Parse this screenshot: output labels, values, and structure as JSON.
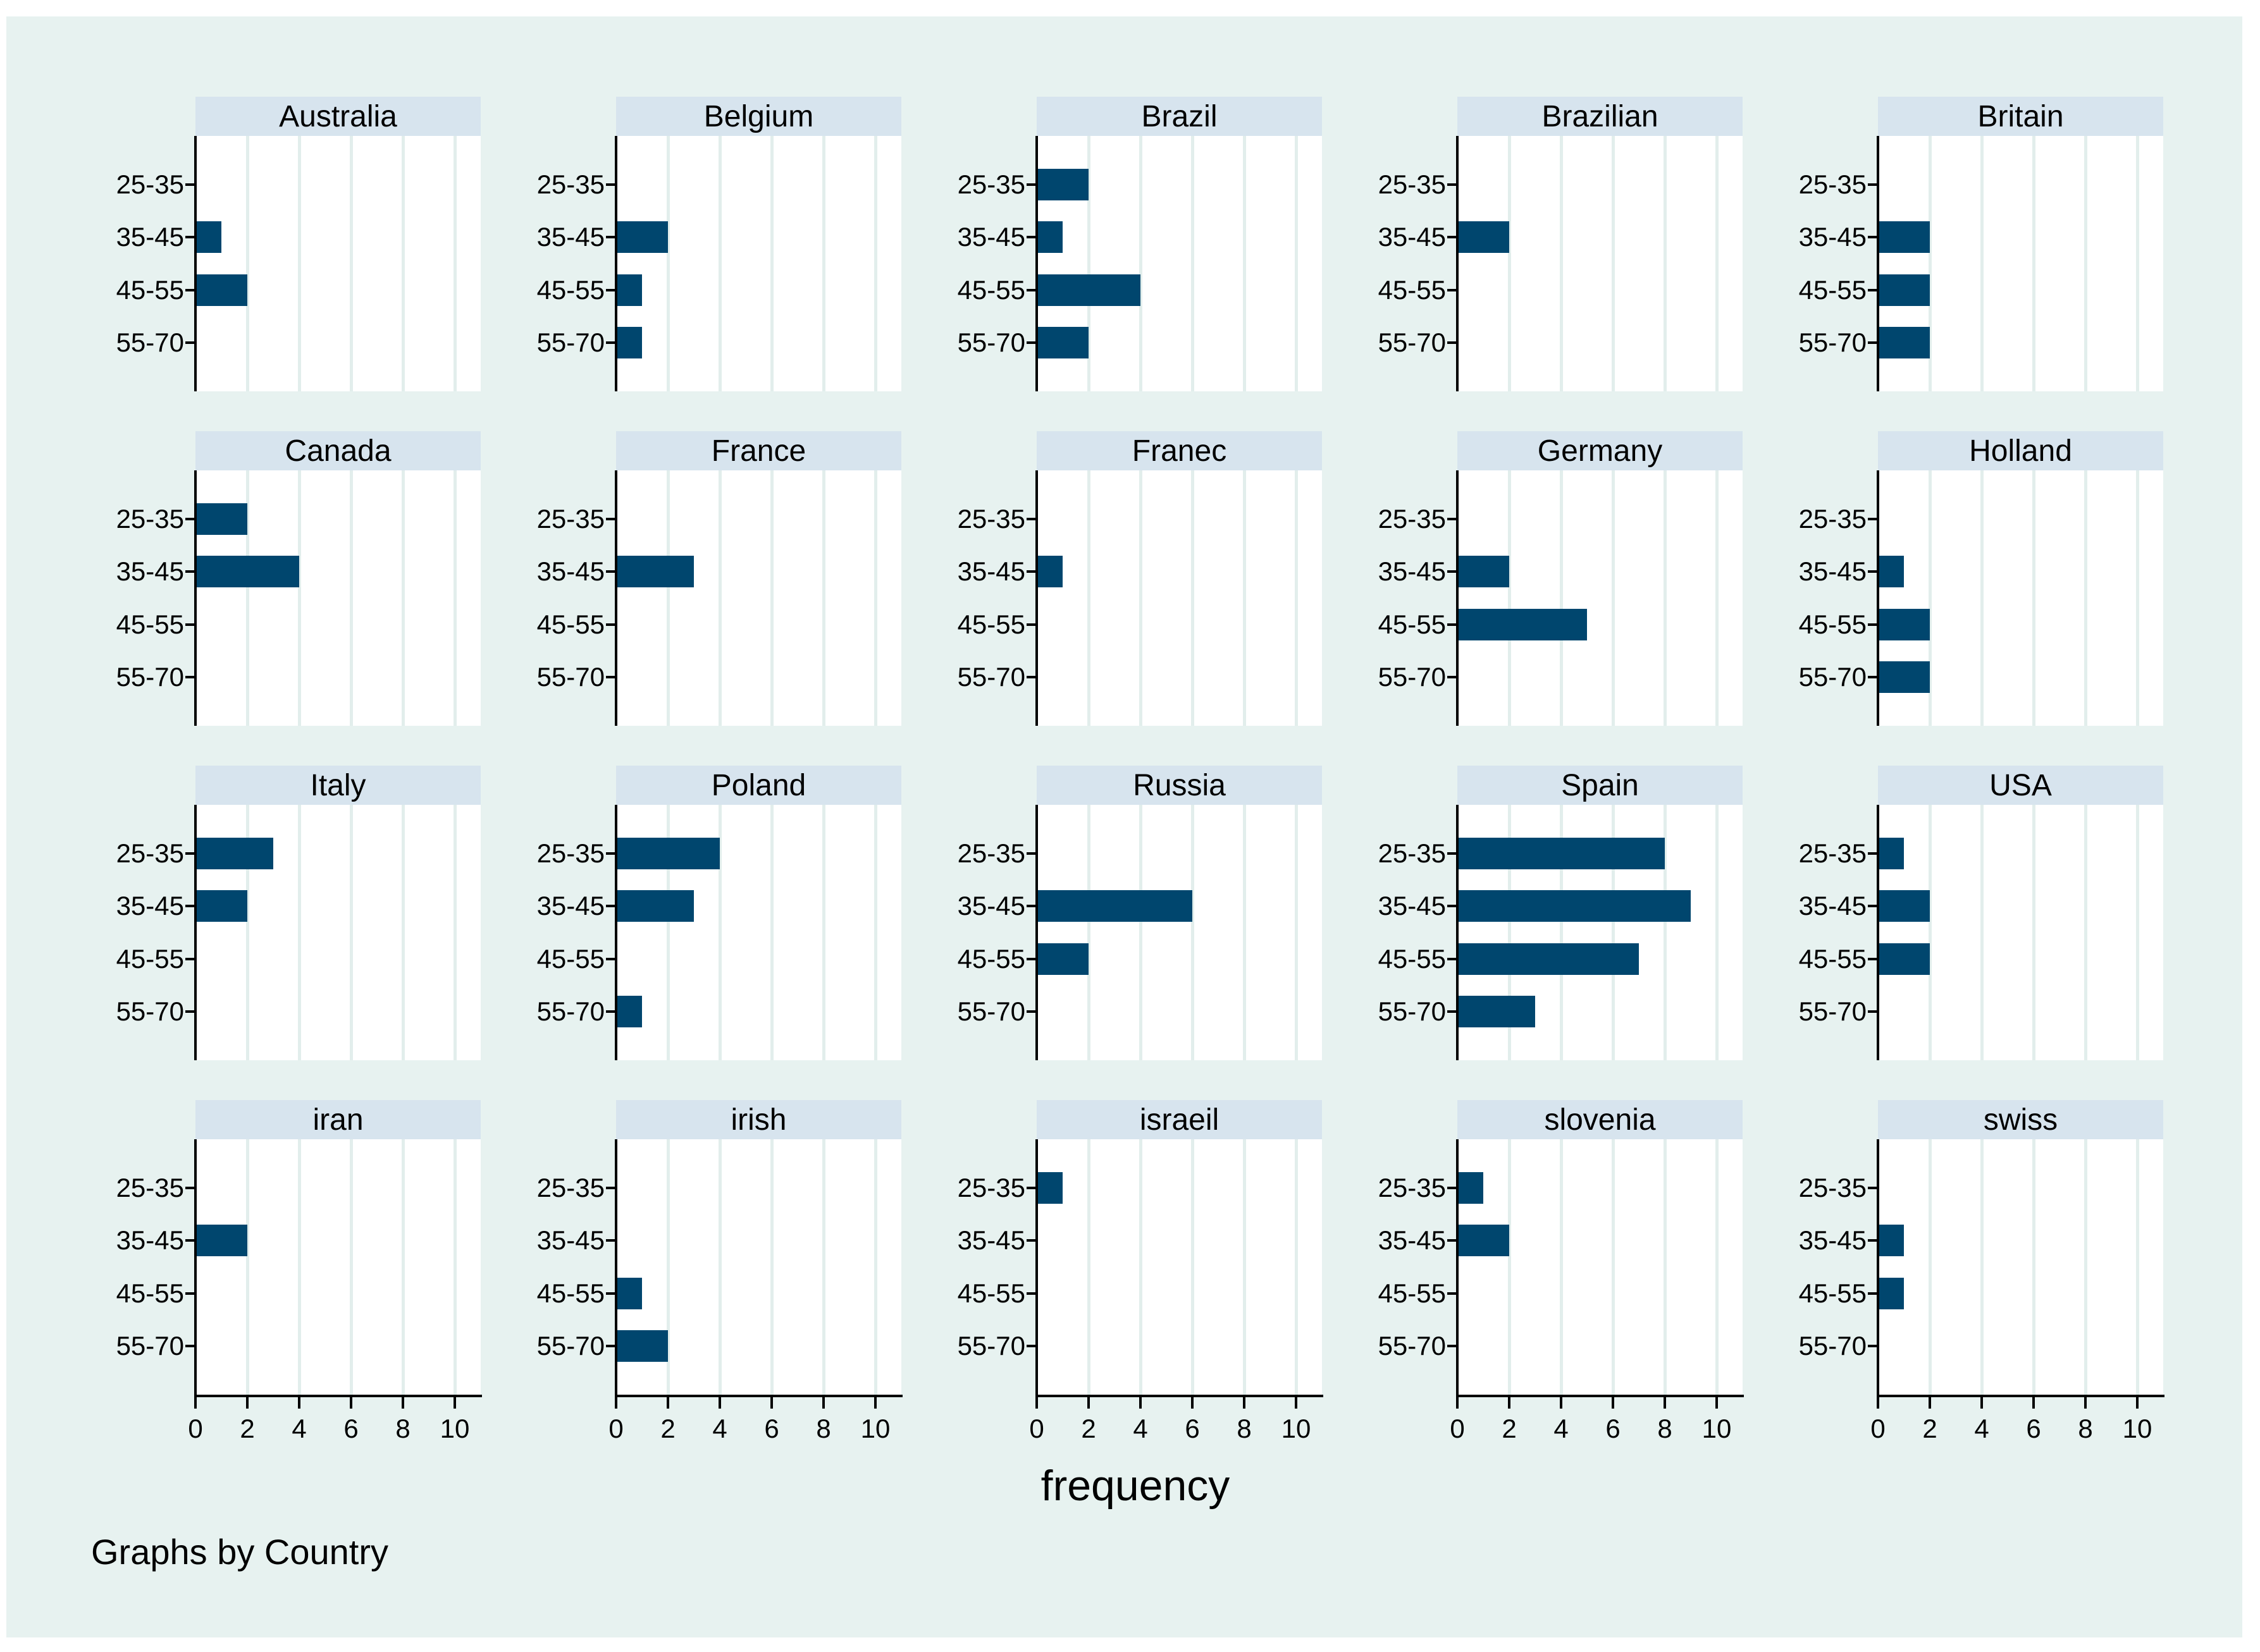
{
  "caption": "Graphs by Country",
  "colors": {
    "bar": "#00466e",
    "header_band": "#d7e4ee",
    "canvas_background": "#e7f2f0",
    "gridline": "#e2eeec",
    "plot_background": "#ffffff",
    "axis": "#000000"
  },
  "chart_data": {
    "type": "bar",
    "orientation": "horizontal",
    "xlabel": "frequency",
    "categories": [
      "25-35",
      "35-45",
      "45-55",
      "55-70"
    ],
    "x_ticks": [
      "0",
      "2",
      "4",
      "6",
      "8",
      "10"
    ],
    "xlim": [
      0,
      11
    ],
    "grid": true,
    "legend": "none",
    "panels": [
      {
        "title": "Australia",
        "values": [
          0,
          1,
          2,
          0
        ]
      },
      {
        "title": "Belgium",
        "values": [
          0,
          2,
          1,
          1
        ]
      },
      {
        "title": "Brazil",
        "values": [
          2,
          1,
          4,
          2
        ]
      },
      {
        "title": "Brazilian",
        "values": [
          0,
          2,
          0,
          0
        ]
      },
      {
        "title": "Britain",
        "values": [
          0,
          2,
          2,
          2
        ]
      },
      {
        "title": "Canada",
        "values": [
          2,
          4,
          0,
          0
        ]
      },
      {
        "title": "France",
        "values": [
          0,
          3,
          0,
          0
        ]
      },
      {
        "title": "Franec",
        "values": [
          0,
          1,
          0,
          0
        ]
      },
      {
        "title": "Germany",
        "values": [
          0,
          2,
          5,
          0
        ]
      },
      {
        "title": "Holland",
        "values": [
          0,
          1,
          2,
          2
        ]
      },
      {
        "title": "Italy",
        "values": [
          3,
          2,
          0,
          0
        ]
      },
      {
        "title": "Poland",
        "values": [
          4,
          3,
          0,
          1
        ]
      },
      {
        "title": "Russia",
        "values": [
          0,
          6,
          2,
          0
        ]
      },
      {
        "title": "Spain",
        "values": [
          8,
          9,
          7,
          3
        ]
      },
      {
        "title": "USA",
        "values": [
          1,
          2,
          2,
          0
        ]
      },
      {
        "title": "iran",
        "values": [
          0,
          2,
          0,
          0
        ]
      },
      {
        "title": "irish",
        "values": [
          0,
          0,
          1,
          2
        ]
      },
      {
        "title": "israeil",
        "values": [
          1,
          0,
          0,
          0
        ]
      },
      {
        "title": "slovenia",
        "values": [
          1,
          2,
          0,
          0
        ]
      },
      {
        "title": "swiss",
        "values": [
          0,
          1,
          1,
          0
        ]
      }
    ]
  }
}
